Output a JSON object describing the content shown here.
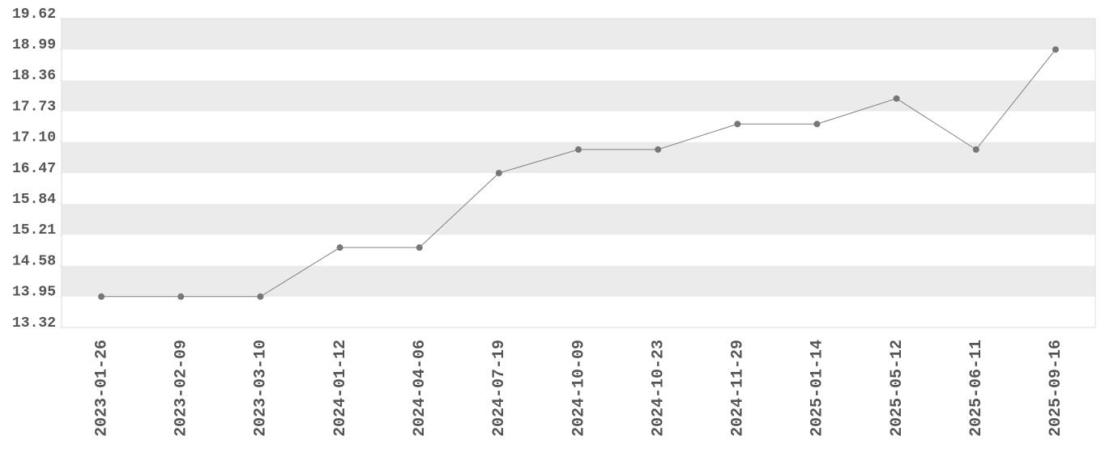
{
  "chart_data": {
    "type": "line",
    "categories": [
      "2023-01-26",
      "2023-02-09",
      "2023-03-10",
      "2024-01-12",
      "2024-04-06",
      "2024-07-19",
      "2024-10-09",
      "2024-10-23",
      "2024-11-29",
      "2025-01-14",
      "2025-05-12",
      "2025-06-11",
      "2025-09-16"
    ],
    "values": [
      13.95,
      13.95,
      13.95,
      14.95,
      14.95,
      16.47,
      16.95,
      16.95,
      17.47,
      17.47,
      17.99,
      16.95,
      18.99
    ],
    "color": "#808080",
    "ylim": [
      13.32,
      19.62
    ],
    "yticks": [
      13.32,
      13.95,
      14.58,
      15.21,
      15.84,
      16.47,
      {
        "value": 17.1,
        "label": "17.10"
      },
      17.73,
      18.36,
      18.99,
      19.62
    ],
    "band_color": "#ebebeb"
  }
}
